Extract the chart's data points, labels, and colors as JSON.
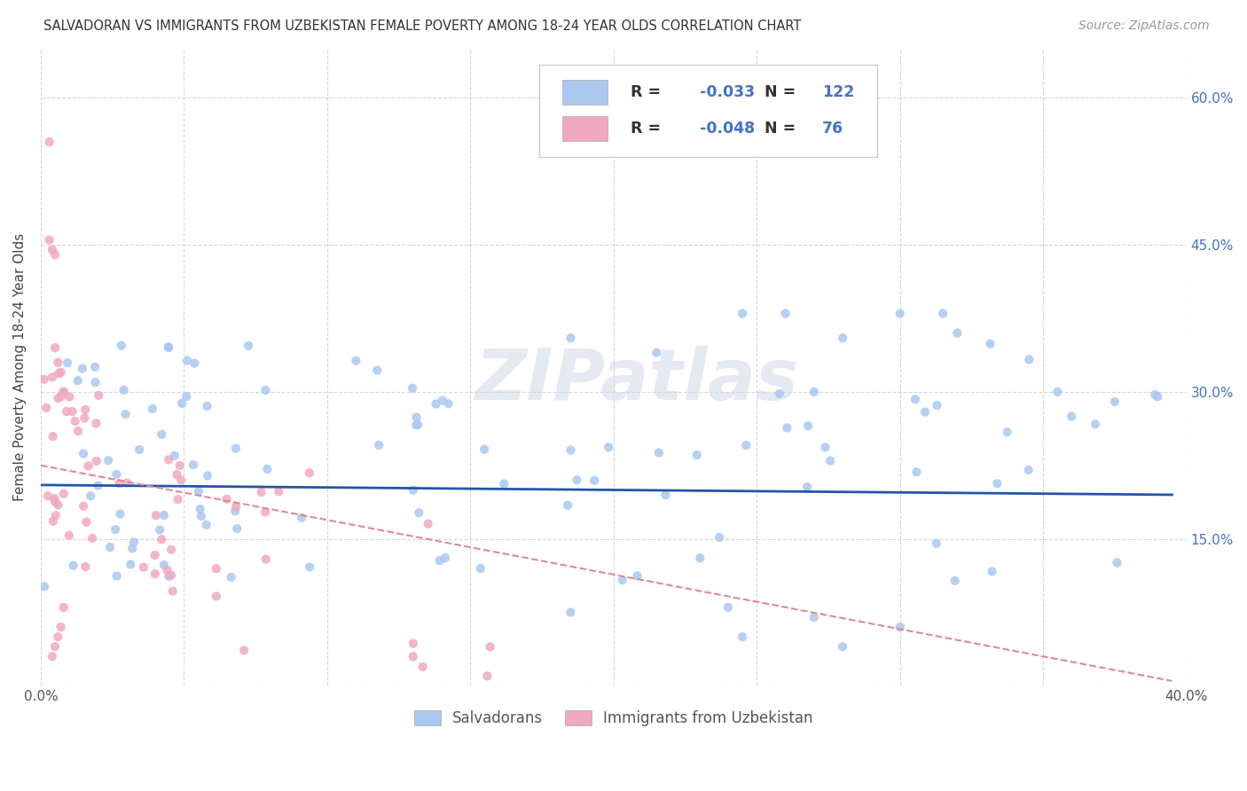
{
  "title": "SALVADORAN VS IMMIGRANTS FROM UZBEKISTAN FEMALE POVERTY AMONG 18-24 YEAR OLDS CORRELATION CHART",
  "source": "Source: ZipAtlas.com",
  "ylabel": "Female Poverty Among 18-24 Year Olds",
  "xlim": [
    0.0,
    0.4
  ],
  "ylim": [
    0.0,
    0.65
  ],
  "ytick_positions": [
    0.0,
    0.15,
    0.3,
    0.45,
    0.6
  ],
  "yticklabels_right": [
    "",
    "15.0%",
    "30.0%",
    "45.0%",
    "60.0%"
  ],
  "xtick_positions": [
    0.0,
    0.05,
    0.1,
    0.15,
    0.2,
    0.25,
    0.3,
    0.35,
    0.4
  ],
  "xticklabels": [
    "0.0%",
    "",
    "",
    "",
    "",
    "",
    "",
    "",
    "40.0%"
  ],
  "salvadoran_color": "#aac8f0",
  "uzbekistan_color": "#f0a8c0",
  "trendline_salvadoran_color": "#2255aa",
  "trendline_uzbekistan_color": "#e08898",
  "r_salvadoran": -0.033,
  "n_salvadoran": 122,
  "r_uzbekistan": -0.048,
  "n_uzbekistan": 76,
  "watermark": "ZIPatlas",
  "background_color": "#ffffff",
  "grid_color": "#cccccc",
  "legend_text_color": "#333333",
  "legend_value_color": "#4472c4",
  "sal_trend_y0": 0.205,
  "sal_trend_y1": 0.195,
  "uzb_trend_y0": 0.225,
  "uzb_trend_y1": 0.005
}
